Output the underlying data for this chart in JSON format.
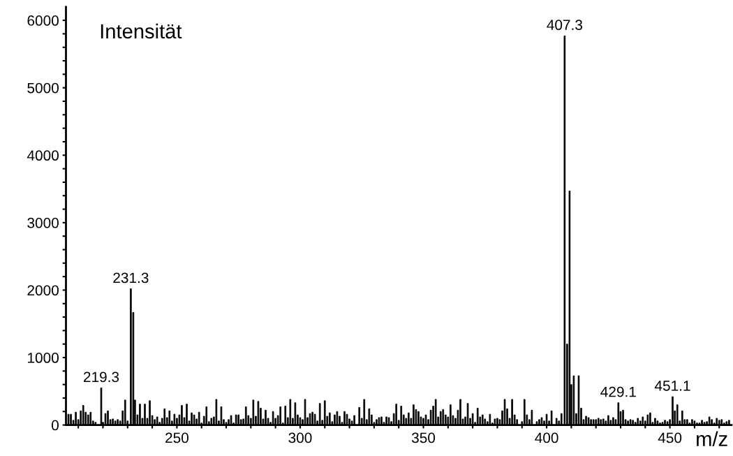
{
  "chart_data": {
    "type": "bar",
    "ylabel": "Intensität",
    "xlabel": "m/z",
    "x": [
      206,
      207,
      208,
      209,
      210,
      211,
      212,
      213,
      214,
      215,
      216,
      217,
      218,
      219.3,
      220,
      221,
      222,
      223,
      224,
      225,
      226,
      227,
      228,
      229,
      230,
      231.3,
      232.3,
      233,
      234,
      235,
      236,
      237,
      238,
      239,
      240,
      241,
      242,
      243,
      244,
      245,
      246,
      247,
      248,
      249,
      250,
      251,
      252,
      253,
      254,
      255,
      256,
      257,
      258,
      259,
      260,
      261,
      262,
      263,
      264,
      265,
      266,
      267,
      268,
      269,
      270,
      271,
      272,
      273,
      274,
      275,
      276,
      277,
      278,
      279,
      280,
      281,
      282,
      283,
      284,
      285,
      286,
      287,
      288,
      289,
      290,
      291,
      292,
      293,
      294,
      295,
      296,
      297,
      298,
      299,
      300,
      301,
      302,
      303,
      304,
      305,
      306,
      307,
      308,
      309,
      310,
      311,
      312,
      313,
      314,
      315,
      316,
      317,
      318,
      319,
      320,
      321,
      322,
      323,
      324,
      325,
      326,
      327,
      328,
      329,
      330,
      331,
      332,
      333,
      334,
      335,
      336,
      337,
      338,
      339,
      340,
      341,
      342,
      343,
      344,
      345,
      346,
      347,
      348,
      349,
      350,
      351,
      352,
      353,
      354,
      355,
      356,
      357,
      358,
      359,
      360,
      361,
      362,
      363,
      364,
      365,
      366,
      367,
      368,
      369,
      370,
      371,
      372,
      373,
      374,
      375,
      376,
      377,
      378,
      379,
      380,
      381,
      382,
      383,
      384,
      385,
      386,
      387,
      388,
      389,
      390,
      391,
      392,
      393,
      394,
      395,
      396,
      397,
      398,
      399,
      400,
      401,
      402,
      403,
      404,
      405,
      406,
      407.3,
      408.3,
      409.3,
      410,
      411,
      412,
      413,
      414,
      415,
      416,
      417,
      418,
      419,
      420,
      421,
      422,
      423,
      424,
      425,
      426,
      427,
      428,
      429.1,
      430,
      431,
      432,
      433,
      434,
      435,
      436,
      437,
      438,
      439,
      440,
      441,
      442,
      443,
      444,
      445,
      446,
      447,
      448,
      449,
      450,
      451.1,
      452,
      453,
      454,
      455,
      456,
      457,
      458,
      459,
      460,
      461,
      462,
      463,
      464,
      465,
      466,
      467,
      468,
      469,
      470,
      471,
      472,
      473,
      474
    ],
    "values": [
      160,
      160,
      70,
      190,
      80,
      210,
      290,
      190,
      150,
      190,
      60,
      40,
      null,
      550,
      40,
      170,
      210,
      80,
      90,
      60,
      80,
      60,
      210,
      370,
      60,
      2020,
      1670,
      370,
      150,
      310,
      100,
      310,
      100,
      360,
      140,
      80,
      120,
      40,
      100,
      240,
      110,
      210,
      60,
      160,
      100,
      150,
      290,
      110,
      310,
      60,
      180,
      150,
      90,
      190,
      30,
      130,
      270,
      50,
      100,
      120,
      380,
      60,
      270,
      80,
      40,
      80,
      140,
      30,
      150,
      150,
      80,
      90,
      270,
      140,
      100,
      370,
      130,
      350,
      250,
      90,
      220,
      100,
      40,
      200,
      100,
      140,
      270,
      30,
      280,
      110,
      380,
      100,
      330,
      150,
      110,
      80,
      380,
      110,
      170,
      190,
      160,
      60,
      320,
      70,
      360,
      130,
      180,
      50,
      150,
      200,
      130,
      40,
      200,
      160,
      90,
      60,
      140,
      null,
      260,
      100,
      380,
      80,
      240,
      150,
      40,
      80,
      110,
      120,
      40,
      120,
      110,
      50,
      170,
      310,
      70,
      280,
      150,
      100,
      180,
      100,
      300,
      230,
      200,
      120,
      100,
      150,
      80,
      220,
      280,
      380,
      120,
      200,
      230,
      150,
      120,
      300,
      140,
      100,
      220,
      380,
      90,
      120,
      320,
      100,
      170,
      40,
      250,
      120,
      150,
      90,
      50,
      160,
      30,
      90,
      100,
      80,
      210,
      380,
      240,
      100,
      380,
      150,
      80,
      null,
      50,
      380,
      150,
      80,
      220,
      null,
      50,
      80,
      110,
      60,
      160,
      60,
      210,
      null,
      100,
      60,
      170,
      5770,
      1200,
      3470,
      600,
      730,
      170,
      730,
      250,
      80,
      130,
      110,
      80,
      80,
      80,
      100,
      80,
      90,
      60,
      140,
      70,
      110,
      80,
      330,
      200,
      220,
      80,
      60,
      80,
      70,
      40,
      100,
      60,
      120,
      60,
      150,
      180,
      40,
      100,
      60,
      30,
      40,
      70,
      50,
      80,
      420,
      210,
      300,
      60,
      210,
      80,
      80,
      30,
      80,
      60,
      30,
      30,
      70,
      40,
      50,
      120,
      80,
      30,
      100,
      70,
      80,
      30,
      50,
      70
    ],
    "color": "#000000",
    "xlim": [
      205,
      475
    ],
    "xticks": [
      {
        "value": 210,
        "label": null
      },
      {
        "value": 220,
        "label": null
      },
      {
        "value": 230,
        "label": null
      },
      {
        "value": 240,
        "label": null
      },
      250,
      {
        "value": 260,
        "label": null
      },
      {
        "value": 270,
        "label": null
      },
      {
        "value": 280,
        "label": null
      },
      {
        "value": 290,
        "label": null
      },
      300,
      {
        "value": 310,
        "label": null
      },
      {
        "value": 320,
        "label": null
      },
      {
        "value": 330,
        "label": null
      },
      {
        "value": 340,
        "label": null
      },
      350,
      {
        "value": 360,
        "label": null
      },
      {
        "value": 370,
        "label": null
      },
      {
        "value": 380,
        "label": null
      },
      {
        "value": 390,
        "label": null
      },
      400,
      {
        "value": 410,
        "label": null
      },
      {
        "value": 420,
        "label": null
      },
      {
        "value": 430,
        "label": null
      },
      {
        "value": 440,
        "label": null
      },
      450,
      {
        "value": 460,
        "label": null
      },
      {
        "value": 470,
        "label": null
      }
    ],
    "ylim": [
      0,
      6200
    ],
    "yticks": [
      0,
      {
        "value": 200,
        "label": null
      },
      {
        "value": 400,
        "label": null
      },
      {
        "value": 600,
        "label": null
      },
      {
        "value": 800,
        "label": null
      },
      1000,
      {
        "value": 1200,
        "label": null
      },
      {
        "value": 1400,
        "label": null
      },
      {
        "value": 1600,
        "label": null
      },
      {
        "value": 1800,
        "label": null
      },
      2000,
      {
        "value": 2200,
        "label": null
      },
      {
        "value": 2400,
        "label": null
      },
      {
        "value": 2600,
        "label": null
      },
      {
        "value": 2800,
        "label": null
      },
      3000,
      {
        "value": 3200,
        "label": null
      },
      {
        "value": 3400,
        "label": null
      },
      {
        "value": 3600,
        "label": null
      },
      {
        "value": 3800,
        "label": null
      },
      4000,
      {
        "value": 4200,
        "label": null
      },
      {
        "value": 4400,
        "label": null
      },
      {
        "value": 4600,
        "label": null
      },
      {
        "value": 4800,
        "label": null
      },
      5000,
      {
        "value": 5200,
        "label": null
      },
      {
        "value": 5400,
        "label": null
      },
      {
        "value": 5600,
        "label": null
      },
      {
        "value": 5800,
        "label": null
      },
      6000
    ],
    "grid": false,
    "legend": false,
    "annotations": [
      {
        "text": "219.3",
        "x": 219.3,
        "y": 550
      },
      {
        "text": "231.3",
        "x": 231.3,
        "y": 2020
      },
      {
        "text": "407.3",
        "x": 407.3,
        "y": 5770
      },
      {
        "text": "429.1",
        "x": 429.1,
        "y": 330
      },
      {
        "text": "451.1",
        "x": 451.1,
        "y": 420
      }
    ]
  }
}
